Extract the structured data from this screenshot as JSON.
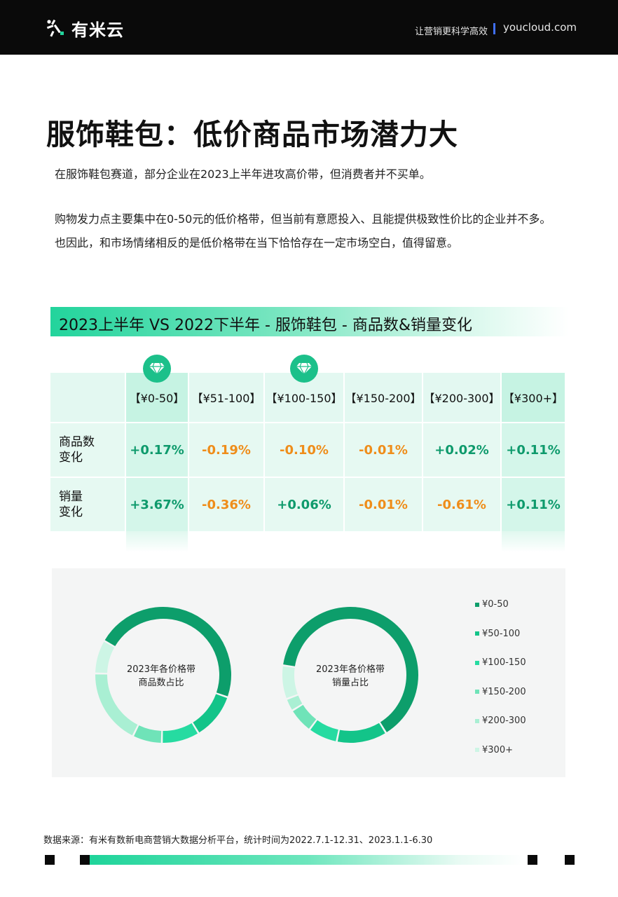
{
  "header": {
    "logo_text": "有米云",
    "slogan": "让营销更科学高效",
    "domain": "youcloud.com"
  },
  "page_title": "服饰鞋包：低价商品市场潜力大",
  "paragraphs": {
    "p1": "在服饰鞋包赛道，部分企业在2023上半年进攻高价带，但消费者并不买单。",
    "p2": "购物发力点主要集中在0-50元的低价格带，但当前有意愿投入、且能提供极致性价比的企业并不多。也因此，和市场情绪相反的是低价格带在当下恰恰存在一定市场空白，值得留意。"
  },
  "section_title": "2023上半年 VS 2022下半年 - 服饰鞋包 - 商品数&销量变化",
  "table": {
    "columns": [
      "【¥0-50】",
      "【¥51-100】",
      "【¥100-150】",
      "【¥150-200】",
      "【¥200-300】",
      "【¥300+】"
    ],
    "rows": [
      {
        "label": "商品数\n变化",
        "values": [
          "+0.17%",
          "-0.19%",
          "-0.10%",
          "-0.01%",
          "+0.02%",
          "+0.11%"
        ]
      },
      {
        "label": "销量\n变化",
        "values": [
          "+3.67%",
          "-0.36%",
          "+0.06%",
          "-0.01%",
          "-0.61%",
          "+0.11%"
        ]
      }
    ],
    "highlight_icon": "diamond-icon"
  },
  "chart_data": [
    {
      "type": "pie",
      "title": "2023年各价格带\n商品数占比",
      "categories": [
        "¥0-50",
        "¥50-100",
        "¥100-150",
        "¥150-200",
        "¥200-300",
        "¥300+"
      ],
      "values": [
        47,
        11,
        9,
        7,
        18,
        8
      ]
    },
    {
      "type": "pie",
      "title": "2023年各价格带\n销量占比",
      "categories": [
        "¥0-50",
        "¥50-100",
        "¥100-150",
        "¥150-200",
        "¥200-300",
        "¥300+"
      ],
      "values": [
        64,
        12,
        7,
        6,
        3,
        8
      ]
    }
  ],
  "legend": {
    "items": [
      "¥0-50",
      "¥50-100",
      "¥100-150",
      "¥150-200",
      "¥200-300",
      "¥300+"
    ],
    "colors": [
      "#0d9e6b",
      "#13c489",
      "#26dba1",
      "#6fe3b8",
      "#a9efd3",
      "#cdf5e5"
    ]
  },
  "footer": {
    "source": "数据来源：有米有数新电商营销大数据分析平台，统计时间为2022.7.1-12.31、2023.1.1-6.30"
  }
}
